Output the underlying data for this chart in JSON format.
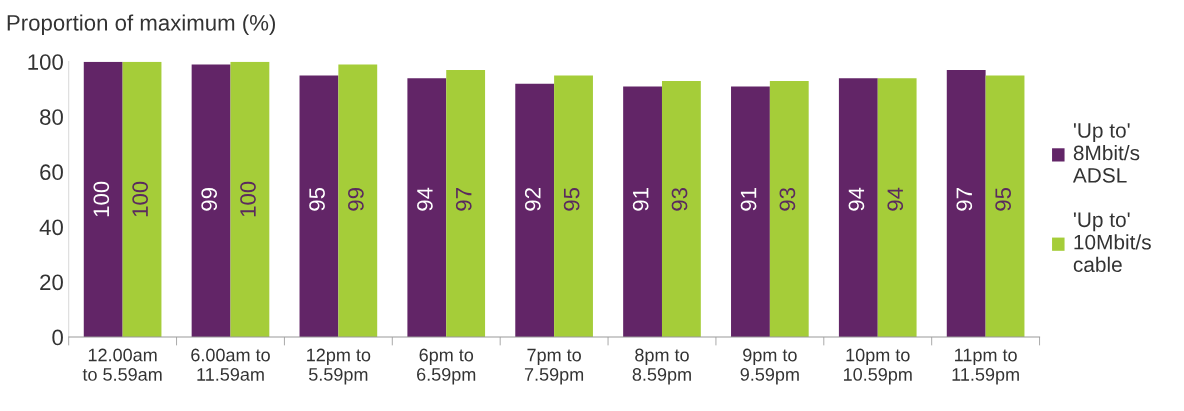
{
  "chart_data": {
    "type": "bar",
    "ylabel": "Proportion of maximum (%)",
    "categories": [
      "12.00am\nto 5.59am",
      "6.00am to\n11.59am",
      "12pm to\n5.59pm",
      "6pm to\n6.59pm",
      "7pm to\n7.59pm",
      "8pm to\n8.59pm",
      "9pm to\n9.59pm",
      "10pm to\n10.59pm",
      "11pm to\n11.59pm"
    ],
    "series": [
      {
        "name": "'Up to'\n8Mbit/s\nADSL",
        "color": "#622567",
        "values": [
          100,
          99,
          95,
          94,
          92,
          91,
          91,
          94,
          97
        ]
      },
      {
        "name": "'Up to'\n10Mbit/s\ncable",
        "color": "#a5cd39",
        "values": [
          100,
          100,
          99,
          97,
          95,
          93,
          93,
          94,
          95
        ]
      }
    ],
    "ylim": [
      0,
      100
    ],
    "yticks": [
      0,
      20,
      40,
      60,
      80,
      100
    ],
    "grid": false,
    "legend": "right",
    "data_labels": true
  }
}
